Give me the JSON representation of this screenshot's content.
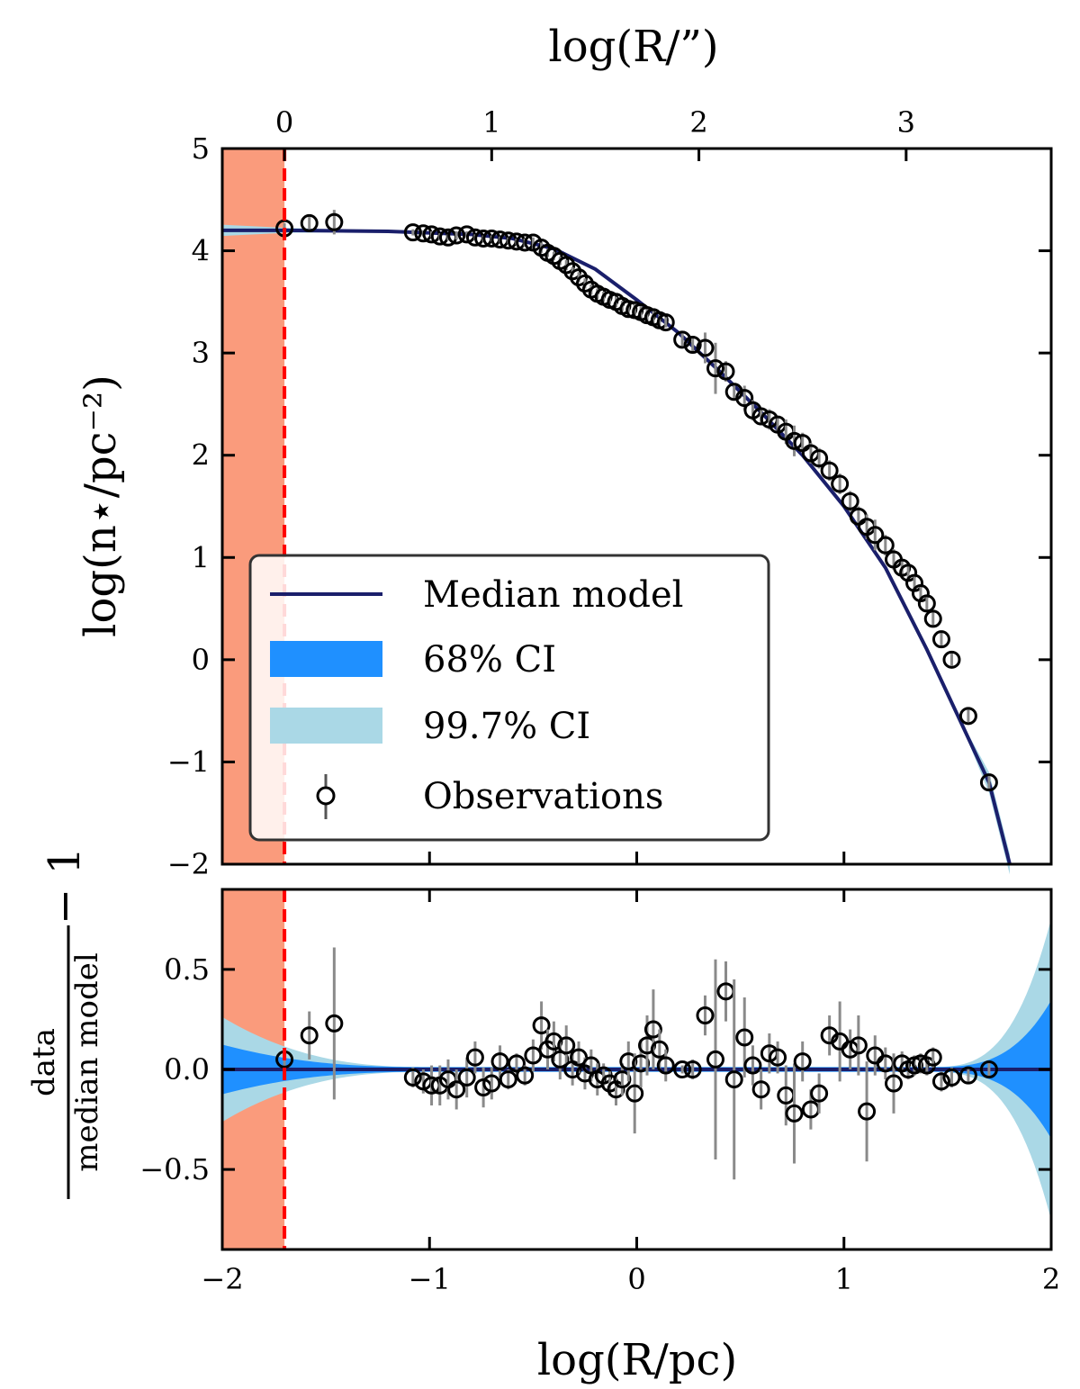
{
  "colors": {
    "median": "#1a1f6b",
    "ci68": "#1f90ff",
    "ci997": "#aad8e6",
    "excluded": "#fa9b7c",
    "cutoff": "#ff0000",
    "errorbar": "#8a8a8a",
    "marker": "#000000"
  },
  "chart_data": [
    {
      "type": "line",
      "panel": "top",
      "title": "",
      "xlabel": "",
      "ylabel": "log(n⋆/pc⁻²)",
      "top_xlabel": "log(R/”)",
      "xlim": [
        -2,
        2
      ],
      "ylim": [
        -2,
        5
      ],
      "yticks": [
        -2,
        -1,
        0,
        1,
        2,
        3,
        4,
        5
      ],
      "ytick_labels": [
        "−2",
        "−1",
        "0",
        "1",
        "2",
        "3",
        "4",
        "5"
      ],
      "top_xticks_arcsec": [
        0,
        1,
        2,
        3
      ],
      "top_xtick_labels": [
        "0",
        "1",
        "2",
        "3"
      ],
      "top_axis_offset": -1.7,
      "excluded_region": [
        -2,
        -1.7
      ],
      "cutoff_x": -1.7,
      "legend": {
        "position": "lower-left",
        "entries": [
          "Median model",
          "68% CI",
          "99.7% CI",
          "Observations"
        ]
      },
      "model": {
        "x": [
          -2,
          -1.7,
          -1.2,
          -0.8,
          -0.6,
          -0.4,
          -0.2,
          0,
          0.2,
          0.4,
          0.6,
          0.8,
          1.0,
          1.2,
          1.4,
          1.55,
          1.7,
          1.8
        ],
        "y": [
          4.2,
          4.2,
          4.19,
          4.16,
          4.12,
          4.02,
          3.82,
          3.52,
          3.2,
          2.82,
          2.42,
          2.0,
          1.5,
          0.9,
          0.1,
          -0.55,
          -1.2,
          -2.0
        ]
      },
      "series": [
        {
          "name": "Observations",
          "x": [
            -1.7,
            -1.58,
            -1.46,
            -1.08,
            -1.03,
            -0.99,
            -0.95,
            -0.91,
            -0.87,
            -0.82,
            -0.78,
            -0.74,
            -0.7,
            -0.66,
            -0.62,
            -0.58,
            -0.54,
            -0.5,
            -0.46,
            -0.43,
            -0.4,
            -0.37,
            -0.34,
            -0.31,
            -0.28,
            -0.25,
            -0.22,
            -0.19,
            -0.16,
            -0.13,
            -0.1,
            -0.07,
            -0.04,
            -0.01,
            0.02,
            0.05,
            0.08,
            0.11,
            0.14,
            0.22,
            0.27,
            0.33,
            0.38,
            0.43,
            0.47,
            0.52,
            0.56,
            0.6,
            0.64,
            0.68,
            0.72,
            0.76,
            0.8,
            0.84,
            0.88,
            0.93,
            0.98,
            1.03,
            1.07,
            1.11,
            1.15,
            1.2,
            1.24,
            1.28,
            1.31,
            1.34,
            1.37,
            1.4,
            1.43,
            1.47,
            1.52,
            1.6,
            1.7
          ],
          "y": [
            4.22,
            4.27,
            4.28,
            4.18,
            4.17,
            4.16,
            4.14,
            4.13,
            4.15,
            4.16,
            4.13,
            4.12,
            4.12,
            4.11,
            4.1,
            4.09,
            4.08,
            4.08,
            4.03,
            3.98,
            3.95,
            3.9,
            3.86,
            3.8,
            3.74,
            3.68,
            3.62,
            3.58,
            3.55,
            3.52,
            3.5,
            3.46,
            3.43,
            3.42,
            3.4,
            3.37,
            3.35,
            3.32,
            3.3,
            3.13,
            3.08,
            3.05,
            2.85,
            2.82,
            2.62,
            2.56,
            2.44,
            2.38,
            2.35,
            2.3,
            2.23,
            2.14,
            2.12,
            2.02,
            1.97,
            1.85,
            1.72,
            1.55,
            1.4,
            1.3,
            1.22,
            1.12,
            0.98,
            0.9,
            0.85,
            0.75,
            0.65,
            0.55,
            0.4,
            0.2,
            0.0,
            -0.55,
            -1.2
          ],
          "yerr": [
            0.05,
            0.06,
            0.12,
            0.03,
            0.03,
            0.03,
            0.03,
            0.03,
            0.04,
            0.03,
            0.03,
            0.03,
            0.03,
            0.03,
            0.03,
            0.03,
            0.04,
            0.05,
            0.05,
            0.04,
            0.04,
            0.04,
            0.05,
            0.04,
            0.05,
            0.05,
            0.05,
            0.05,
            0.05,
            0.04,
            0.05,
            0.05,
            0.05,
            0.06,
            0.06,
            0.06,
            0.06,
            0.05,
            0.05,
            0.06,
            0.08,
            0.15,
            0.25,
            0.1,
            0.08,
            0.12,
            0.1,
            0.08,
            0.1,
            0.08,
            0.12,
            0.15,
            0.1,
            0.1,
            0.1,
            0.1,
            0.1,
            0.1,
            0.1,
            0.12,
            0.15,
            0.1,
            0.1,
            0.08,
            0.08,
            0.08,
            0.08,
            0.08,
            0.08,
            0.08,
            0.06,
            0.06,
            0.06
          ]
        }
      ]
    },
    {
      "type": "scatter",
      "panel": "bottom",
      "title": "",
      "xlabel": "log(R/pc)",
      "ylabel": "data / median model − 1",
      "ylabel_numerator": "data",
      "ylabel_denominator": "median model",
      "ylabel_suffix": "− 1",
      "xlim": [
        -2,
        2
      ],
      "ylim": [
        -0.9,
        0.9
      ],
      "xticks": [
        -2,
        -1,
        0,
        1,
        2
      ],
      "xtick_labels": [
        "−2",
        "−1",
        "0",
        "1",
        "2"
      ],
      "yticks": [
        -0.5,
        0.0,
        0.5
      ],
      "ytick_labels": [
        "−0.5",
        "0.0",
        "0.5"
      ],
      "excluded_region": [
        -2,
        -1.7
      ],
      "cutoff_x": -1.7,
      "series": [
        {
          "name": "Residuals",
          "x": [
            -1.7,
            -1.58,
            -1.46,
            -1.08,
            -1.03,
            -0.99,
            -0.95,
            -0.91,
            -0.87,
            -0.82,
            -0.78,
            -0.74,
            -0.7,
            -0.66,
            -0.62,
            -0.58,
            -0.54,
            -0.5,
            -0.46,
            -0.43,
            -0.4,
            -0.37,
            -0.34,
            -0.31,
            -0.28,
            -0.25,
            -0.22,
            -0.19,
            -0.16,
            -0.13,
            -0.1,
            -0.07,
            -0.04,
            -0.01,
            0.02,
            0.05,
            0.08,
            0.11,
            0.14,
            0.22,
            0.27,
            0.33,
            0.38,
            0.43,
            0.47,
            0.52,
            0.56,
            0.6,
            0.64,
            0.68,
            0.72,
            0.76,
            0.8,
            0.84,
            0.88,
            0.93,
            0.98,
            1.03,
            1.07,
            1.11,
            1.15,
            1.2,
            1.24,
            1.28,
            1.31,
            1.34,
            1.37,
            1.4,
            1.43,
            1.47,
            1.52,
            1.6,
            1.7
          ],
          "y": [
            0.05,
            0.17,
            0.23,
            -0.04,
            -0.06,
            -0.08,
            -0.08,
            -0.05,
            -0.1,
            -0.04,
            0.06,
            -0.09,
            -0.07,
            0.04,
            -0.05,
            0.03,
            -0.03,
            0.07,
            0.22,
            0.1,
            0.14,
            0.05,
            0.12,
            0.0,
            0.06,
            -0.02,
            0.02,
            -0.05,
            -0.03,
            -0.07,
            -0.1,
            -0.05,
            0.04,
            -0.12,
            0.03,
            0.12,
            0.2,
            0.1,
            0.02,
            0.0,
            0.0,
            0.27,
            0.05,
            0.39,
            -0.05,
            0.16,
            0.02,
            -0.1,
            0.08,
            0.06,
            -0.13,
            -0.22,
            0.04,
            -0.2,
            -0.12,
            0.17,
            0.14,
            0.1,
            0.12,
            -0.21,
            0.07,
            0.03,
            -0.07,
            0.03,
            0.0,
            0.02,
            0.03,
            0.02,
            0.06,
            -0.06,
            -0.04,
            -0.03,
            0.0
          ],
          "yerr": [
            0.05,
            0.12,
            0.38,
            0.05,
            0.06,
            0.1,
            0.1,
            0.1,
            0.1,
            0.1,
            0.08,
            0.1,
            0.08,
            0.08,
            0.05,
            0.05,
            0.05,
            0.08,
            0.12,
            0.1,
            0.1,
            0.1,
            0.1,
            0.08,
            0.08,
            0.08,
            0.08,
            0.08,
            0.06,
            0.06,
            0.08,
            0.08,
            0.1,
            0.2,
            0.12,
            0.15,
            0.2,
            0.1,
            0.08,
            0.02,
            0.05,
            0.1,
            0.5,
            0.15,
            0.5,
            0.2,
            0.1,
            0.1,
            0.1,
            0.08,
            0.15,
            0.25,
            0.1,
            0.1,
            0.1,
            0.1,
            0.2,
            0.1,
            0.15,
            0.25,
            0.1,
            0.08,
            0.15,
            0.06,
            0.05,
            0.05,
            0.05,
            0.05,
            0.05,
            0.05,
            0.05,
            0.04,
            0.04
          ]
        }
      ]
    }
  ]
}
